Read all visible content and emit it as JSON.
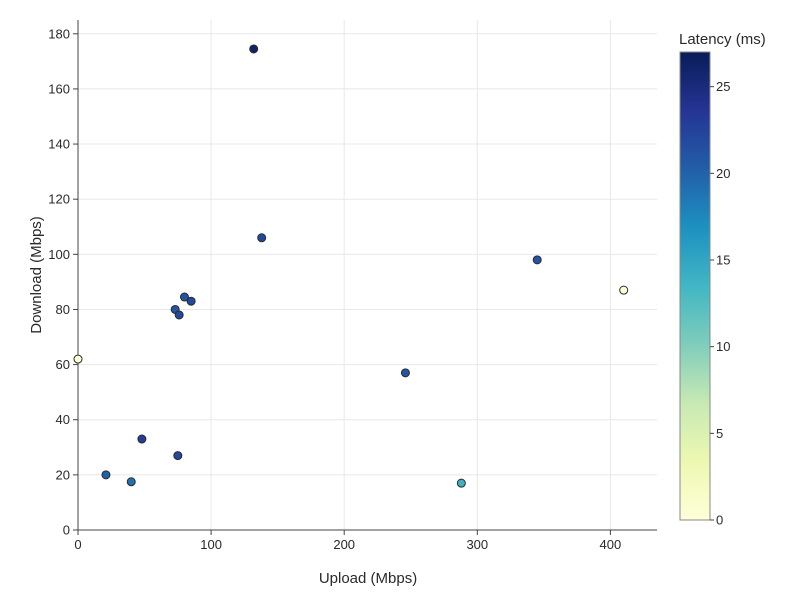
{
  "chart_data": {
    "type": "scatter",
    "xlabel": "Upload (Mbps)",
    "ylabel": "Download (Mbps)",
    "xlim": [
      0,
      435
    ],
    "ylim": [
      0,
      185
    ],
    "xticks": [
      "0",
      "100",
      "200",
      "300",
      "400"
    ],
    "yticks": [
      "0",
      "20",
      "40",
      "60",
      "80",
      "100",
      "120",
      "140",
      "160",
      "180"
    ],
    "grid": true,
    "colorbar": {
      "title": "Latency (ms)",
      "range": [
        0,
        27
      ],
      "ticks": [
        "0",
        "5",
        "10",
        "15",
        "20",
        "25"
      ],
      "colorscale": "YlGnBu"
    },
    "points": [
      {
        "x": 0,
        "y": 62,
        "latency": 0
      },
      {
        "x": 21,
        "y": 20,
        "latency": 20
      },
      {
        "x": 40,
        "y": 17.5,
        "latency": 19
      },
      {
        "x": 48,
        "y": 33,
        "latency": 23
      },
      {
        "x": 73,
        "y": 80,
        "latency": 21
      },
      {
        "x": 75,
        "y": 27,
        "latency": 22
      },
      {
        "x": 76,
        "y": 78,
        "latency": 22
      },
      {
        "x": 80,
        "y": 84.5,
        "latency": 21
      },
      {
        "x": 85,
        "y": 83,
        "latency": 22
      },
      {
        "x": 132,
        "y": 174.5,
        "latency": 26
      },
      {
        "x": 138,
        "y": 106,
        "latency": 22
      },
      {
        "x": 246,
        "y": 57,
        "latency": 21
      },
      {
        "x": 288,
        "y": 17,
        "latency": 14
      },
      {
        "x": 345,
        "y": 98,
        "latency": 21
      },
      {
        "x": 410,
        "y": 87,
        "latency": 0
      }
    ]
  }
}
